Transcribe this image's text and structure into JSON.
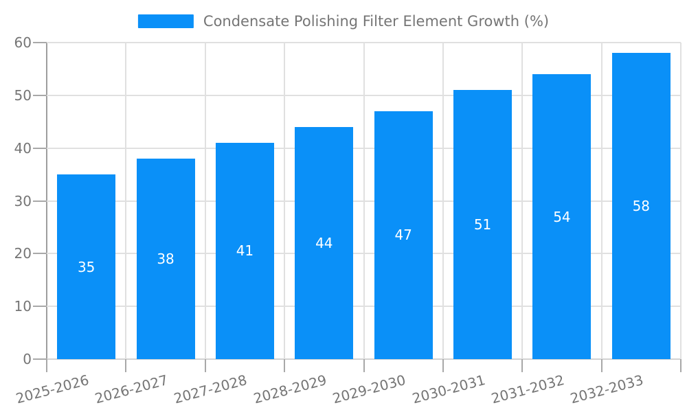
{
  "chart_data": {
    "type": "bar",
    "title": "Condensate Polishing Filter Element Growth (%)",
    "legend": {
      "label": "Condensate Polishing Filter Element Growth (%)",
      "position": "top-center"
    },
    "categories": [
      "2025-2026",
      "2026-2027",
      "2027-2028",
      "2028-2029",
      "2029-2030",
      "2030-2031",
      "2031-2032",
      "2032-2033"
    ],
    "values": [
      35,
      38,
      41,
      44,
      47,
      51,
      54,
      58
    ],
    "series": [
      {
        "name": "Condensate Polishing Filter Element Growth (%)",
        "values": [
          35,
          38,
          41,
          44,
          47,
          51,
          54,
          58
        ]
      }
    ],
    "xlabel": "",
    "ylabel": "",
    "ylim": [
      0,
      60
    ],
    "yticks": [
      0,
      10,
      20,
      30,
      40,
      50,
      60
    ],
    "grid": true,
    "xtick_rotation_deg": 15,
    "bar_labels_inside": true,
    "colors": {
      "bar": "#0a90f8",
      "bar_label": "#ffffff",
      "axis_text": "#757575",
      "grid_line": "#e0e0e0",
      "axis_line": "#9e9e9e",
      "tick_line": "#a8a8a8",
      "background": "#ffffff"
    }
  }
}
